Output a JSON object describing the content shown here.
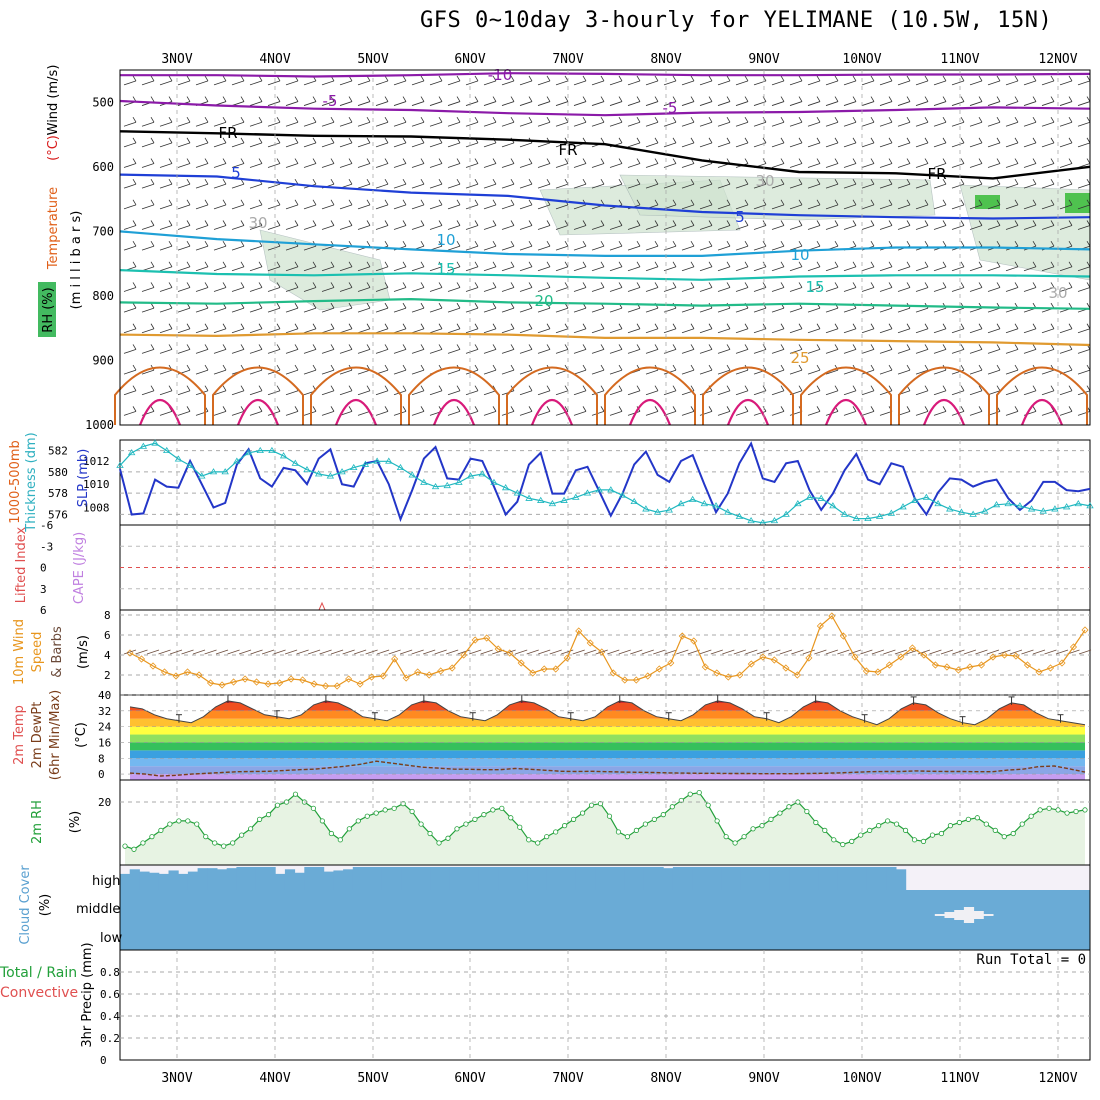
{
  "title": "GFS 0~10day 3-hourly for YELIMANE (10.5W, 15N)",
  "run_total": "Run Total = 0",
  "colors": {
    "temp_minus10": "#8b1aa8",
    "temp_minus5": "#8b1aa8",
    "freezing": "#000000",
    "temp_5": "#1f3fd6",
    "temp_10": "#1fa0d6",
    "temp_15": "#1cc0b0",
    "temp_20": "#22bb88",
    "temp_25": "#e09a30",
    "temp_30": "#d46a20",
    "temp_35": "#d81a7a",
    "slp": "#2336c8",
    "thickness": "#20b8c0",
    "wind_speed": "#e8961e",
    "rh": "#22a03a",
    "cloud": "#6aabd6"
  },
  "panel_labels": {
    "upper": [
      {
        "text": "Wind (m/s)",
        "color": "#000000"
      },
      {
        "text": "Temperature (°C)",
        "color": "#000000"
      },
      {
        "text": "RH (%)",
        "color": "#22a03a"
      },
      {
        "text": "(millibars)",
        "color": "#000000"
      }
    ],
    "upper_colored_parts": {
      "wind": "Wind (m/s)",
      "temperature": "Temperature",
      "temp_unit": "(°C)",
      "rh": "RH (%)",
      "millibars": "(m i l l i b a r s)"
    },
    "thickness": [
      "1000-500mb",
      "Thickness (dm)",
      "SLP (mb)"
    ],
    "stability": [
      "Lifted Index",
      "CAPE (J/kg)"
    ],
    "wind10m": [
      "10m Wind",
      "Speed",
      "(m/s)",
      "& Barbs"
    ],
    "temp2m": [
      "2m Temp",
      "2m DewPt",
      "(6hr Min/Max)",
      "(°C)"
    ],
    "rh2m": [
      "2m RH",
      "(%)"
    ],
    "cloud": [
      "Cloud Cover",
      "(%)"
    ],
    "precip": [
      "Total / Rain",
      "Convective",
      "3hr Precip (mm)"
    ]
  },
  "chart_data": [
    {
      "type": "line",
      "panel": "upper-air cross section",
      "x_labels": [
        "3NOV",
        "4NOV",
        "5NOV",
        "6NOV",
        "7NOV",
        "8NOV",
        "9NOV",
        "10NOV",
        "11NOV",
        "12NOV"
      ],
      "ylabel": "(millibars)",
      "yticks": [
        500,
        600,
        700,
        800,
        900,
        1000
      ],
      "ylim": [
        1000,
        450
      ],
      "contour_labels": [
        "-10",
        "-5",
        "-5",
        "FR",
        "FR",
        "FR",
        "5",
        "5",
        "10",
        "10",
        "15",
        "15",
        "20",
        "25",
        "30",
        "30",
        "30"
      ],
      "series": [
        {
          "name": "-10",
          "values": [
            458,
            458,
            460,
            458,
            455,
            456,
            458,
            458,
            457,
            457,
            456
          ]
        },
        {
          "name": "-5",
          "values": [
            498,
            505,
            510,
            512,
            517,
            520,
            516,
            515,
            512,
            508,
            510
          ]
        },
        {
          "name": "FR",
          "values": [
            545,
            548,
            552,
            553,
            558,
            565,
            590,
            608,
            610,
            618,
            600
          ]
        },
        {
          "name": "5",
          "values": [
            612,
            615,
            630,
            640,
            645,
            660,
            670,
            675,
            678,
            680,
            678
          ]
        },
        {
          "name": "10",
          "values": [
            700,
            712,
            720,
            728,
            735,
            738,
            738,
            730,
            725,
            725,
            728
          ]
        },
        {
          "name": "15",
          "values": [
            760,
            766,
            768,
            765,
            768,
            772,
            775,
            770,
            768,
            768,
            770
          ]
        },
        {
          "name": "20",
          "values": [
            810,
            812,
            808,
            805,
            810,
            812,
            815,
            812,
            815,
            818,
            820
          ]
        },
        {
          "name": "25",
          "values": [
            860,
            862,
            858,
            858,
            860,
            865,
            865,
            868,
            870,
            872,
            876
          ]
        }
      ]
    },
    {
      "type": "line",
      "panel": "thickness and SLP",
      "yticks_left": [
        576,
        578,
        580,
        582
      ],
      "yticks_right": [
        1008,
        1010,
        1012
      ],
      "series": [
        {
          "name": "SLP (mb)",
          "axis": "right",
          "values": [
            1011.3,
            1007.4,
            1007.5,
            1010.4,
            1009.8,
            1009.7,
            1012.0,
            1010.0,
            1008.0,
            1008.4,
            1011.7,
            1013.0,
            1010.5,
            1009.8,
            1011.4,
            1011.2,
            1010.0,
            1012.2,
            1013.0,
            1010.0,
            1009.8,
            1011.8,
            1012.0,
            1010.0,
            1007.0,
            1009.5,
            1012.2,
            1013.2,
            1010.5,
            1010.4,
            1012.2,
            1012.0,
            1009.8,
            1007.4,
            1008.5,
            1011.7,
            1012.7,
            1009.2,
            1009.2,
            1011.2,
            1011.5,
            1009.4,
            1007.3,
            1009.2,
            1011.7,
            1012.8,
            1010.8,
            1010.2,
            1012.0,
            1012.5,
            1010.0,
            1007.6,
            1009.2,
            1011.8,
            1013.5,
            1010.5,
            1010.2,
            1011.8,
            1012.0,
            1009.5,
            1007.8,
            1009.2,
            1011.2,
            1012.6,
            1010.4,
            1010.0,
            1011.8,
            1011.5,
            1008.8,
            1007.4,
            1009.3,
            1010.5,
            1010.4,
            1009.8,
            1010.2,
            1010.4,
            1008.8,
            1007.8,
            1008.6,
            1010.2,
            1010.2,
            1009.5,
            1009.4,
            1009.6
          ]
        },
        {
          "name": "Thickness (dm)",
          "axis": "left",
          "values": [
            580.6,
            581.8,
            582.4,
            582.7,
            582.0,
            581.2,
            580.6,
            579.6,
            580.0,
            580.0,
            581.0,
            581.8,
            582.0,
            582.0,
            581.5,
            580.8,
            580.2,
            579.8,
            579.6,
            580.0,
            580.4,
            580.7,
            581.0,
            581.0,
            580.4,
            579.7,
            579.0,
            578.6,
            578.7,
            579.0,
            579.6,
            579.8,
            579.0,
            578.5,
            578.0,
            577.5,
            577.3,
            577.0,
            577.3,
            577.6,
            578.0,
            578.3,
            578.3,
            577.8,
            577.2,
            576.5,
            576.2,
            576.4,
            577.0,
            577.4,
            577.0,
            576.8,
            576.2,
            575.8,
            575.4,
            575.2,
            575.4,
            576.0,
            577.0,
            577.6,
            577.5,
            576.8,
            576.0,
            575.6,
            575.6,
            575.8,
            576.1,
            576.7,
            577.3,
            577.6,
            577.0,
            576.5,
            576.2,
            576.0,
            576.3,
            576.9,
            577.0,
            576.8,
            576.5,
            576.3,
            576.5,
            576.7,
            577.0,
            576.8
          ]
        }
      ]
    },
    {
      "type": "line",
      "panel": "stability",
      "yticks": [
        "-6",
        "-3",
        "0",
        "3",
        "6"
      ],
      "ylim": [
        -6,
        6
      ],
      "note_values": {
        "lifted_index_reference": 0
      }
    },
    {
      "type": "line",
      "panel": "10m wind",
      "ylabel": "(m/s)",
      "yticks": [
        2,
        4,
        6,
        8
      ],
      "ylim": [
        0,
        8.5
      ],
      "series": [
        {
          "name": "Speed",
          "values": [
            4.2,
            3.6,
            2.9,
            2.3,
            1.9,
            2.3,
            2.0,
            1.2,
            1.0,
            1.3,
            1.6,
            1.3,
            1.1,
            1.2,
            1.6,
            1.5,
            1.1,
            0.9,
            0.9,
            1.6,
            1.1,
            1.8,
            1.9,
            3.6,
            1.7,
            2.3,
            2.0,
            2.4,
            2.7,
            4.0,
            5.5,
            5.7,
            4.6,
            4.2,
            3.2,
            2.2,
            2.6,
            2.6,
            3.7,
            6.4,
            5.2,
            4.3,
            2.2,
            1.5,
            1.5,
            1.9,
            2.6,
            3.2,
            5.9,
            5.4,
            2.8,
            2.2,
            1.8,
            2.0,
            3.1,
            3.8,
            3.5,
            2.7,
            2.0,
            3.7,
            6.9,
            7.9,
            5.9,
            3.8,
            2.4,
            2.3,
            3.0,
            3.8,
            4.7,
            4.0,
            3.0,
            2.8,
            2.5,
            2.8,
            3.0,
            3.8,
            4.0,
            3.9,
            3.0,
            2.3,
            2.7,
            3.2,
            4.8,
            6.5
          ]
        }
      ]
    },
    {
      "type": "area",
      "panel": "2m temperature",
      "ylabel": "(°C)",
      "yticks": [
        0,
        8,
        16,
        24,
        32,
        40
      ],
      "ylim": [
        -3,
        40
      ],
      "series": [
        {
          "name": "2m Temp",
          "values": [
            34,
            33,
            30,
            28,
            27,
            26,
            29,
            34,
            37,
            36,
            33,
            30,
            29,
            28,
            30,
            35,
            37,
            36,
            33,
            29,
            28,
            27,
            30,
            35,
            37,
            36,
            32,
            29,
            28,
            27,
            30,
            35,
            37,
            36,
            33,
            29,
            28,
            27,
            29,
            34,
            37,
            36,
            32,
            29,
            28,
            27,
            30,
            35,
            37,
            36,
            33,
            29,
            28,
            26,
            29,
            34,
            37,
            36,
            32,
            29,
            27,
            25,
            28,
            33,
            36,
            35,
            31,
            28,
            26,
            25,
            28,
            33,
            36,
            35,
            31,
            28,
            27,
            26,
            25
          ]
        },
        {
          "name": "2m DewPt",
          "values": [
            0.5,
            0,
            -1,
            -0.6,
            0,
            0.4,
            0.8,
            1.2,
            1.3,
            1.4,
            1.8,
            2.2,
            2.5,
            3.2,
            4.0,
            5.0,
            6.5,
            5.5,
            4.5,
            3.5,
            3.0,
            2.5,
            2.4,
            2.2,
            2.2,
            2.8,
            2.4,
            1.9,
            1.4,
            1.3,
            1.4,
            1.2,
            1.0,
            0.9,
            0.8,
            0.6,
            0.5,
            0.4,
            0.4,
            0.3,
            0.3,
            0.2,
            0.2,
            0.2,
            0.3,
            0.4,
            0.6,
            0.9,
            1.2,
            1.3,
            1.3,
            1.6,
            1.4,
            1.3,
            1.3,
            1.2,
            1.2,
            2.0,
            2.5,
            3.8,
            4.1,
            2.6,
            1.0
          ]
        }
      ]
    },
    {
      "type": "area",
      "panel": "2m RH",
      "ylabel": "(%)",
      "yticks": [
        20
      ],
      "ylim": [
        0,
        27
      ],
      "series": [
        {
          "name": "2m RH",
          "values": [
            6.0,
            5.0,
            7.0,
            9.0,
            11.0,
            13.0,
            14.0,
            14.0,
            13.0,
            9.0,
            7.0,
            6.0,
            7.0,
            9.5,
            11.5,
            14.5,
            16.0,
            19.0,
            20.0,
            22.5,
            20.0,
            18.0,
            14.0,
            10.0,
            8.0,
            11.5,
            14.0,
            15.5,
            16.5,
            17.5,
            18.0,
            19.5,
            17.0,
            13.0,
            10.0,
            7.0,
            8.5,
            11.5,
            13.0,
            14.5,
            16.0,
            17.5,
            18.0,
            15.0,
            12.0,
            8.0,
            7.0,
            9.0,
            10.5,
            12.5,
            14.5,
            16.5,
            19.0,
            19.5,
            15.5,
            10.5,
            9.0,
            11.0,
            13.0,
            14.5,
            16.0,
            18.5,
            20.5,
            22.5,
            23.0,
            19.0,
            14.0,
            9.0,
            7.0,
            9.0,
            11.5,
            12.5,
            14.5,
            16.5,
            18.5,
            20.0,
            17.0,
            13.5,
            11.0,
            8.0,
            6.5,
            7.5,
            9.5,
            11.0,
            12.5,
            14.0,
            13.0,
            11.0,
            8.0,
            7.5,
            9.5,
            10.0,
            12.5,
            13.5,
            14.5,
            15.0,
            13.0,
            11.0,
            9.0,
            10.0,
            13.0,
            15.5,
            17.5,
            18.0,
            17.5,
            16.5,
            17.0,
            17.5
          ]
        }
      ]
    },
    {
      "type": "bar",
      "panel": "cloud cover",
      "ylabel": "(%)",
      "yticks": [
        "high",
        "middle",
        "low"
      ],
      "series": [
        {
          "name": "high",
          "values": [
            70,
            90,
            80,
            75,
            70,
            85,
            70,
            80,
            95,
            95,
            90,
            95,
            100,
            100,
            100,
            100,
            70,
            90,
            75,
            100,
            100,
            80,
            85,
            90,
            100,
            100,
            100,
            100,
            100,
            100,
            100,
            100,
            100,
            100,
            100,
            100,
            100,
            100,
            100,
            100,
            100,
            100,
            100,
            100,
            100,
            100,
            100,
            100,
            100,
            100,
            100,
            100,
            100,
            100,
            100,
            100,
            95,
            100,
            100,
            100,
            100,
            100,
            100,
            100,
            100,
            100,
            100,
            100,
            100,
            100,
            100,
            100,
            100,
            100,
            100,
            100,
            100,
            100,
            100,
            100,
            90,
            0,
            0,
            0,
            0,
            0,
            0,
            0,
            0,
            0,
            0,
            0,
            0,
            0,
            0,
            0,
            0,
            0,
            0,
            0
          ]
        },
        {
          "name": "middle",
          "values": [
            0,
            0,
            0,
            0,
            0,
            0,
            0,
            0,
            0,
            0,
            0,
            0,
            0,
            0,
            0,
            0,
            0,
            0,
            0,
            0,
            0,
            0,
            0,
            0,
            0,
            0,
            0,
            0,
            0,
            0,
            0,
            0,
            0,
            0,
            0,
            0,
            0,
            0,
            0,
            0,
            0,
            0,
            0,
            0,
            0,
            0,
            0,
            0,
            0,
            0,
            0,
            0,
            0,
            0,
            0,
            0,
            0,
            0,
            0,
            0,
            0,
            0,
            0,
            0,
            0,
            0,
            0,
            0,
            0,
            0,
            0,
            0,
            0,
            0,
            0,
            0,
            0,
            0,
            0,
            0,
            0,
            0,
            0,
            0,
            5,
            15,
            25,
            40,
            20,
            5,
            0,
            0,
            0,
            0,
            0,
            0,
            0,
            0,
            0,
            0,
            0
          ]
        },
        {
          "name": "low",
          "values": [
            0
          ]
        }
      ]
    },
    {
      "type": "bar",
      "panel": "3hr precip",
      "ylabel": "3hr Precip (mm)",
      "yticks": [
        0,
        0.2,
        0.4,
        0.6,
        0.8
      ],
      "ylim": [
        0,
        1.0
      ],
      "series": [
        {
          "name": "Total / Rain",
          "values": [
            0
          ]
        },
        {
          "name": "Convective",
          "values": [
            0
          ]
        }
      ]
    }
  ]
}
